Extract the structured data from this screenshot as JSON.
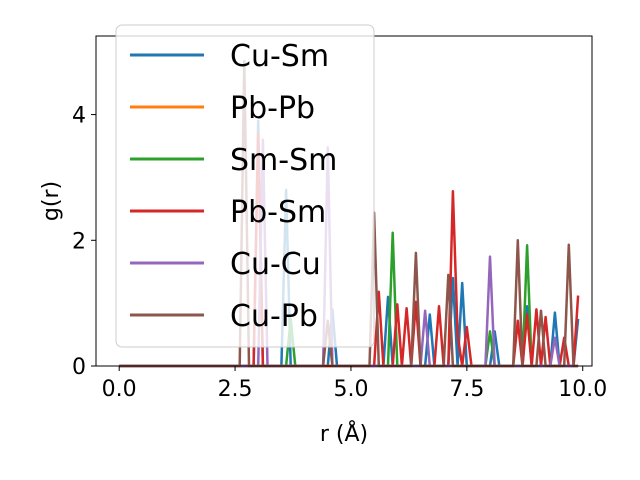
{
  "chart_data": {
    "type": "line",
    "xlabel": "r (Å)",
    "ylabel": "g(r)",
    "xlim": [
      -0.5,
      10.2
    ],
    "ylim": [
      0,
      5.25
    ],
    "xticks": [
      "0.0",
      "2.5",
      "5.0",
      "7.5",
      "10.0"
    ],
    "xtick_values": [
      0,
      2.5,
      5,
      7.5,
      10
    ],
    "yticks": [
      "0",
      "2",
      "4"
    ],
    "ytick_values": [
      0,
      2,
      4
    ],
    "legend_position": "upper-left",
    "series": [
      {
        "name": "Cu-Sm",
        "color": "#1f77b4",
        "x": [
          0,
          2.9,
          3.0,
          3.1,
          3.2,
          3.3,
          3.5,
          3.6,
          3.7,
          4.5,
          4.6,
          4.7,
          5.7,
          5.8,
          5.9,
          6.6,
          6.7,
          6.8,
          7.1,
          7.2,
          7.3,
          7.4,
          7.5,
          8.0,
          8.1,
          8.2,
          8.7,
          8.8,
          8.9,
          9.3,
          9.4,
          9.5,
          9.8,
          9.9
        ],
        "y": [
          0,
          0,
          3.9,
          0,
          0,
          0,
          0,
          2.8,
          0,
          0,
          0.9,
          0,
          0,
          1.1,
          0,
          0,
          0.82,
          0,
          0,
          1.4,
          0,
          1.32,
          0,
          0,
          0.55,
          0,
          0,
          0.95,
          0,
          0,
          0.85,
          0,
          0,
          0.75
        ]
      },
      {
        "name": "Pb-Pb",
        "color": "#ff7f0e",
        "x": [
          0,
          9.9
        ],
        "y": [
          0,
          0
        ]
      },
      {
        "name": "Sm-Sm",
        "color": "#2ca02c",
        "x": [
          0,
          3.6,
          3.7,
          3.8,
          5.8,
          5.9,
          6.0,
          7.9,
          8.0,
          8.1,
          8.7,
          8.8,
          8.9,
          9.9
        ],
        "y": [
          0,
          0,
          0.75,
          0,
          0,
          2.12,
          0,
          0,
          0.55,
          0,
          0,
          1.92,
          0,
          0
        ]
      },
      {
        "name": "Pb-Sm",
        "color": "#d62728",
        "x": [
          0,
          2.9,
          3.0,
          3.1,
          5.5,
          5.6,
          5.7,
          5.9,
          6.0,
          6.1,
          6.2,
          6.3,
          6.4,
          6.5,
          6.8,
          6.9,
          7.0,
          7.1,
          7.2,
          7.3,
          7.4,
          7.5,
          7.6,
          7.7,
          8.5,
          8.6,
          8.7,
          8.8,
          8.9,
          9.0,
          9.1,
          9.2,
          9.3,
          9.5,
          9.6,
          9.7,
          9.8,
          9.9
        ],
        "y": [
          0,
          0,
          3.7,
          0,
          0,
          1.18,
          0,
          0,
          0.98,
          0,
          0.92,
          0,
          1.02,
          0,
          0,
          0.95,
          0,
          0,
          2.78,
          0.5,
          0,
          0.62,
          0,
          0,
          0,
          0.72,
          0,
          0.82,
          0,
          0.9,
          0,
          0.78,
          0,
          0,
          0.45,
          0,
          0,
          1.12
        ]
      },
      {
        "name": "Cu-Cu",
        "color": "#9467bd",
        "x": [
          0,
          3.0,
          3.1,
          3.2,
          4.4,
          4.5,
          4.6,
          6.5,
          6.6,
          6.7,
          7.9,
          8.0,
          8.1,
          9.3,
          9.4,
          9.5,
          9.9
        ],
        "y": [
          0,
          0,
          3.6,
          0,
          0,
          3.48,
          0,
          0,
          0.88,
          0,
          0,
          1.74,
          0,
          0,
          0.45,
          0,
          0
        ]
      },
      {
        "name": "Cu-Pb",
        "color": "#8c564b",
        "x": [
          0,
          2.6,
          2.7,
          2.8,
          4.4,
          4.5,
          4.6,
          5.4,
          5.5,
          5.6,
          6.3,
          6.4,
          6.5,
          7.0,
          7.1,
          7.2,
          8.5,
          8.6,
          8.7,
          9.0,
          9.1,
          9.2,
          9.6,
          9.7,
          9.8,
          9.9
        ],
        "y": [
          0,
          0,
          4.85,
          0,
          0,
          0.72,
          0,
          0,
          2.44,
          0,
          0,
          1.8,
          0,
          0,
          1.45,
          0,
          0,
          2.0,
          0,
          0,
          0.88,
          0,
          0,
          1.93,
          0,
          0
        ]
      }
    ]
  }
}
